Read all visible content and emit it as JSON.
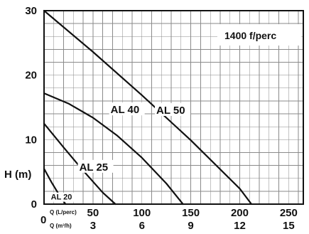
{
  "chart_data": {
    "type": "line",
    "annotation": "1400 f/perc",
    "ylabel": "H (m)",
    "xlabel_primary": "Q (L/perc)",
    "xlabel_secondary": "Q (m³/h)",
    "origin_label": "0",
    "ylim": [
      0,
      30
    ],
    "xlim": [
      0,
      265
    ],
    "grid": true,
    "yticks": [
      {
        "value": 0,
        "label": "0"
      },
      {
        "value": 10,
        "label": "10"
      },
      {
        "value": 20,
        "label": "20"
      },
      {
        "value": 30,
        "label": "30"
      }
    ],
    "xticks_primary": [
      {
        "value": 50,
        "label": "50"
      },
      {
        "value": 100,
        "label": "100"
      },
      {
        "value": 150,
        "label": "150"
      },
      {
        "value": 200,
        "label": "200"
      },
      {
        "value": 250,
        "label": "250"
      }
    ],
    "xticks_secondary": [
      {
        "value": 50,
        "label": "3"
      },
      {
        "value": 100,
        "label": "6"
      },
      {
        "value": 150,
        "label": "9"
      },
      {
        "value": 200,
        "label": "12"
      },
      {
        "value": 250,
        "label": "15"
      }
    ],
    "series": [
      {
        "name": "AL 50",
        "x": [
          0,
          50,
          100,
          150,
          200,
          212
        ],
        "y": [
          30,
          23.6,
          16.9,
          9.9,
          2.4,
          0
        ]
      },
      {
        "name": "AL 40",
        "x": [
          0,
          25,
          50,
          75,
          100,
          125,
          142
        ],
        "y": [
          17.2,
          15.6,
          13.4,
          10.6,
          7.2,
          3.2,
          0
        ]
      },
      {
        "name": "AL 25",
        "x": [
          0,
          20,
          40,
          60,
          73
        ],
        "y": [
          12.5,
          8.8,
          5.2,
          1.8,
          0
        ]
      },
      {
        "name": "AL 20",
        "x": [
          0,
          8,
          16,
          22
        ],
        "y": [
          5.5,
          3.3,
          1.3,
          0
        ]
      }
    ]
  }
}
